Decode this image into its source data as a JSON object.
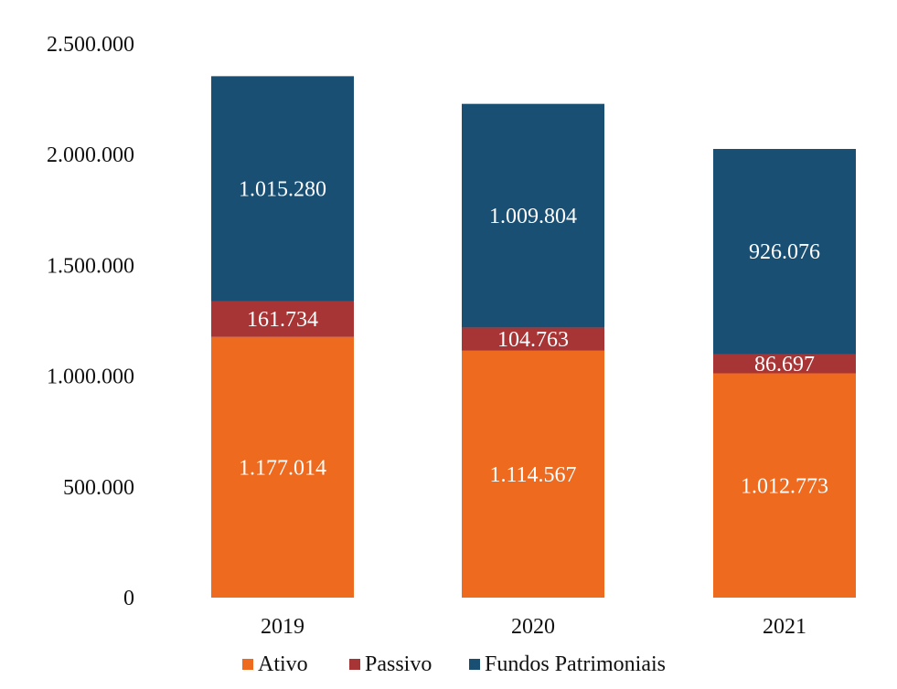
{
  "chart_data": {
    "type": "bar",
    "stacked": true,
    "categories": [
      "2019",
      "2020",
      "2021"
    ],
    "series": [
      {
        "name": "Ativo",
        "color": "#ED6A1E",
        "values": [
          1177014,
          1114567,
          1012773
        ],
        "labels": [
          "1.177.014",
          "1.114.567",
          "1.012.773"
        ]
      },
      {
        "name": "Passivo",
        "color": "#A83536",
        "values": [
          161734,
          104763,
          86697
        ],
        "labels": [
          "161.734",
          "104.763",
          "86.697"
        ]
      },
      {
        "name": "Fundos Patrimoniais",
        "color": "#1A4F74",
        "values": [
          1015280,
          1009804,
          926076
        ],
        "labels": [
          "1.015.280",
          "1.009.804",
          "926.076"
        ]
      }
    ],
    "ylim": [
      0,
      2500000
    ],
    "yticks": [
      0,
      500000,
      1000000,
      1500000,
      2000000,
      2500000
    ],
    "ytick_labels": [
      "0",
      "500.000",
      "1.000.000",
      "1.500.000",
      "2.000.000",
      "2.500.000"
    ],
    "grid": false,
    "legend_position": "bottom",
    "title": "",
    "xlabel": "",
    "ylabel": ""
  }
}
